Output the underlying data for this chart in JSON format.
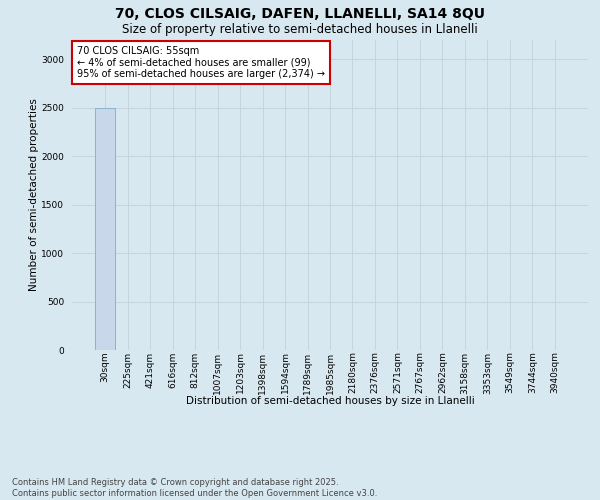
{
  "title_line1": "70, CLOS CILSAIG, DAFEN, LLANELLI, SA14 8QU",
  "title_line2": "Size of property relative to semi-detached houses in Llanelli",
  "xlabel": "Distribution of semi-detached houses by size in Llanelli",
  "ylabel": "Number of semi-detached properties",
  "annotation_title": "70 CLOS CILSAIG: 55sqm",
  "annotation_line2": "← 4% of semi-detached houses are smaller (99)",
  "annotation_line3": "95% of semi-detached houses are larger (2,374) →",
  "categories": [
    "30sqm",
    "225sqm",
    "421sqm",
    "616sqm",
    "812sqm",
    "1007sqm",
    "1203sqm",
    "1398sqm",
    "1594sqm",
    "1789sqm",
    "1985sqm",
    "2180sqm",
    "2376sqm",
    "2571sqm",
    "2767sqm",
    "2962sqm",
    "3158sqm",
    "3353sqm",
    "3549sqm",
    "3744sqm",
    "3940sqm"
  ],
  "values": [
    2500,
    4,
    2,
    1,
    1,
    1,
    1,
    1,
    1,
    1,
    1,
    1,
    1,
    1,
    1,
    1,
    1,
    1,
    1,
    1,
    1
  ],
  "bar_color": "#c8d8ea",
  "bar_edge_color": "#8ab4cc",
  "annotation_box_facecolor": "#ffffff",
  "annotation_box_edgecolor": "#cc0000",
  "ylim": [
    0,
    3200
  ],
  "yticks": [
    0,
    500,
    1000,
    1500,
    2000,
    2500,
    3000
  ],
  "grid_color": "#c8d4dc",
  "background_color": "#d8e8f0",
  "plot_bg_color": "#d8e8f0",
  "footer_line1": "Contains HM Land Registry data © Crown copyright and database right 2025.",
  "footer_line2": "Contains public sector information licensed under the Open Government Licence v3.0.",
  "title_fontsize": 10,
  "subtitle_fontsize": 8.5,
  "axis_label_fontsize": 7.5,
  "tick_fontsize": 6.5,
  "annotation_fontsize": 7,
  "footer_fontsize": 6
}
